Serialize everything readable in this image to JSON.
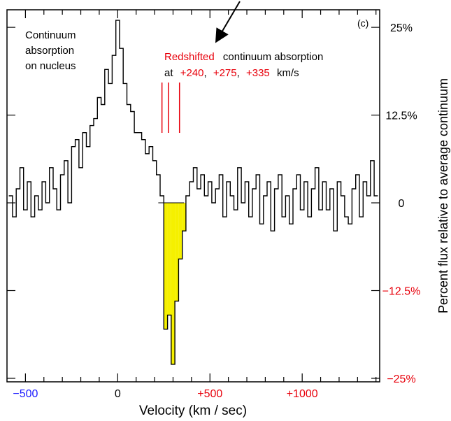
{
  "chart_data": {
    "type": "line",
    "panel_label": "(c)",
    "xlabel": "Velocity (km / sec)",
    "ylabel": "Percent flux relative to average continuum",
    "xlim": [
      -600,
      1420
    ],
    "ylim": [
      -25.5,
      27.5
    ],
    "x_ticks": [
      {
        "value": -500,
        "label": "−500",
        "color": "#1a1aff"
      },
      {
        "value": 0,
        "label": "0",
        "color": "#000000"
      },
      {
        "value": 500,
        "label": "+500",
        "color": "#e8000b"
      },
      {
        "value": 1000,
        "label": "+1000",
        "color": "#e8000b"
      }
    ],
    "y_ticks": [
      {
        "value": 25,
        "label": "25%",
        "color": "#000000"
      },
      {
        "value": 12.5,
        "label": "12.5%",
        "color": "#000000"
      },
      {
        "value": 0,
        "label": "0",
        "color": "#000000"
      },
      {
        "value": -12.5,
        "label": "−12.5%",
        "color": "#e8000b"
      },
      {
        "value": -25,
        "label": "−25%",
        "color": "#e8000b"
      }
    ],
    "annotations": {
      "nucleus": [
        "Continuum",
        "absorption",
        "on nucleus"
      ],
      "redshift_word": "Redshifted",
      "redshift_rest": "continuum absorption",
      "at_word": "at",
      "vel1": "+240",
      "sep1": ",",
      "vel2": "+275",
      "sep2": ",",
      "vel3": "+335",
      "units": "km/s"
    },
    "markers": [
      240,
      275,
      335
    ],
    "absorption_fill_range": [
      220,
      360
    ],
    "colors": {
      "line": "#000000",
      "fill": "#f5f000",
      "marker": "#e8000b",
      "blue": "#1a1aff",
      "red": "#e8000b"
    },
    "step_width": 20,
    "series": [
      {
        "x": [
          -580,
          -560,
          -540,
          -520,
          -500,
          -480,
          -460,
          -440,
          -420,
          -400,
          -380,
          -360,
          -340,
          -320,
          -300,
          -280,
          -260,
          -240,
          -220,
          -200,
          -180,
          -160,
          -140,
          -120,
          -100,
          -80,
          -60,
          -40,
          -20,
          0,
          20,
          40,
          60,
          80,
          100,
          120,
          140,
          160,
          180,
          200,
          220,
          240,
          260,
          280,
          300,
          320,
          340,
          360,
          380,
          400,
          420,
          440,
          460,
          480,
          500,
          520,
          540,
          560,
          580,
          600,
          620,
          640,
          660,
          680,
          700,
          720,
          740,
          760,
          780,
          800,
          820,
          840,
          860,
          880,
          900,
          920,
          940,
          960,
          980,
          1000,
          1020,
          1040,
          1060,
          1080,
          1100,
          1120,
          1140,
          1160,
          1180,
          1200,
          1220,
          1240,
          1260,
          1280,
          1300,
          1320,
          1340,
          1360,
          1380,
          1400
        ],
        "y": [
          1,
          -2,
          2,
          5,
          -1,
          3,
          -2,
          1,
          -1,
          3,
          0,
          5,
          2,
          -1,
          4,
          6,
          0,
          8,
          9,
          5,
          10,
          8,
          11,
          12,
          15,
          14,
          19,
          17,
          21,
          26,
          22,
          17,
          14,
          13,
          10,
          10,
          9,
          7,
          8,
          6,
          4,
          1,
          -18,
          -16,
          -23,
          -14,
          -8,
          -4,
          1,
          3,
          5,
          2,
          4,
          1,
          3,
          0,
          2,
          4,
          -2,
          3,
          1,
          -1,
          5,
          0,
          3,
          -2,
          2,
          4,
          -3,
          1,
          3,
          -4,
          2,
          4,
          -2,
          1,
          -3,
          2,
          4,
          -1,
          3,
          -2,
          2,
          5,
          -1,
          3,
          -1,
          2,
          -4,
          3,
          1,
          -2,
          -3,
          2,
          4,
          -2,
          3,
          1,
          6,
          1
        ]
      }
    ]
  }
}
